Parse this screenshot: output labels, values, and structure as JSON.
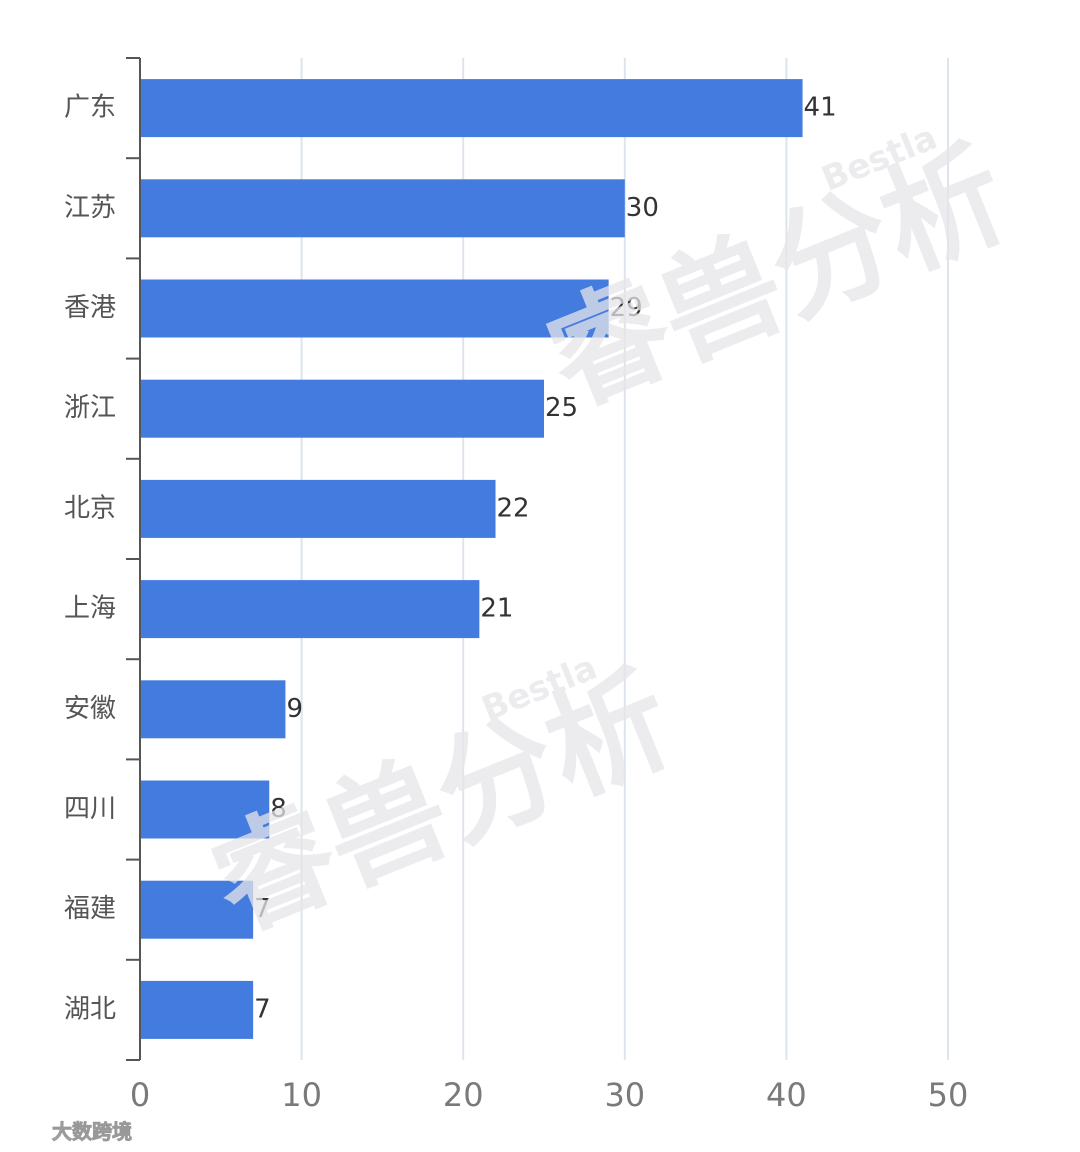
{
  "chart_data": {
    "type": "bar",
    "orientation": "horizontal",
    "categories": [
      "广东",
      "江苏",
      "香港",
      "浙江",
      "北京",
      "上海",
      "安徽",
      "四川",
      "福建",
      "湖北"
    ],
    "values": [
      41,
      30,
      29,
      25,
      22,
      21,
      9,
      8,
      7,
      7
    ],
    "color": "#447bdf",
    "xlim": [
      0,
      50
    ],
    "xticks": [
      0,
      10,
      20,
      30,
      40,
      50
    ],
    "grid": true
  },
  "watermark": {
    "brand": "Bestla",
    "name": "睿兽分析"
  },
  "footer": "大数跨境"
}
